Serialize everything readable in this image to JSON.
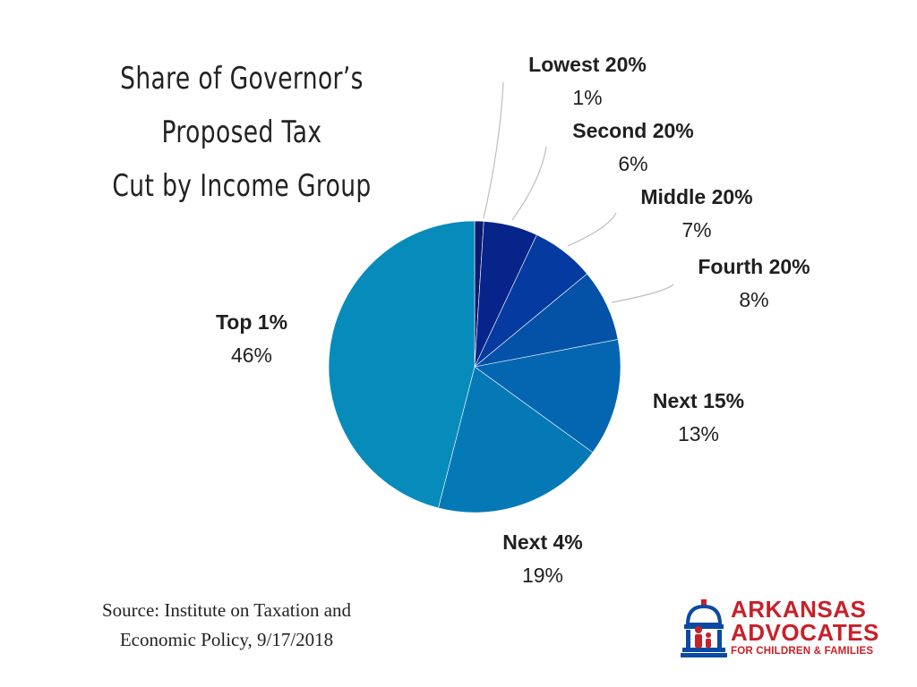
{
  "chart_data": {
    "type": "pie",
    "title": "Share of Governor’s Proposed Tax Cut by Income Group",
    "title_lines": [
      "Share of Governor’s Proposed Tax",
      "Cut by Income Group"
    ],
    "start_angle": "12 o'clock",
    "direction": "clockwise",
    "slices": [
      {
        "label": "Lowest 20%",
        "value": 1,
        "display": "1%",
        "color": "#0a1a6e"
      },
      {
        "label": "Second 20%",
        "value": 6,
        "display": "6%",
        "color": "#07248a"
      },
      {
        "label": "Middle 20%",
        "value": 7,
        "display": "7%",
        "color": "#053aa0"
      },
      {
        "label": "Fourth 20%",
        "value": 8,
        "display": "8%",
        "color": "#0451a8"
      },
      {
        "label": "Next 15%",
        "value": 13,
        "display": "13%",
        "color": "#0466b0"
      },
      {
        "label": "Next 4%",
        "value": 19,
        "display": "19%",
        "color": "#0579b6"
      },
      {
        "label": "Top 1%",
        "value": 46,
        "display": "46%",
        "color": "#068bbb"
      }
    ],
    "legend": "none (labels outside slices with leader lines)"
  },
  "source": {
    "line1": "Source: Institute on Taxation and",
    "line2": "Economic Policy, 9/17/2018"
  },
  "logo": {
    "line1": "ARKANSAS",
    "line2": "ADVOCATES",
    "line3": "FOR CHILDREN & FAMILIES",
    "icon": "capitol-family-icon",
    "color_red": "#c8202a",
    "color_blue": "#0b4aa0"
  }
}
